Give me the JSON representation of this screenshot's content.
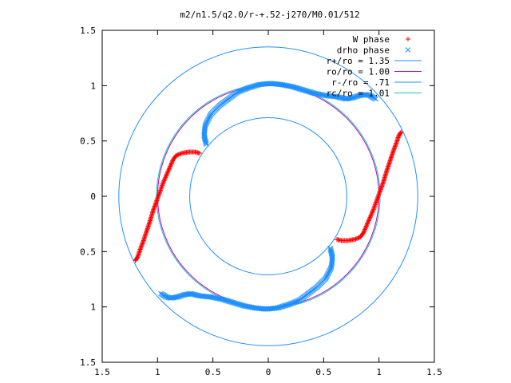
{
  "chart_data": {
    "type": "scatter",
    "title": "m2/n1.5/q2.0/r-+.52-j270/M0.01/512",
    "xlim": [
      -1.5,
      1.5
    ],
    "ylim": [
      -1.5,
      1.5
    ],
    "x_ticks": [
      -1.5,
      -1,
      -0.5,
      0,
      0.5,
      1,
      1.5
    ],
    "y_ticks": [
      -1.5,
      -1,
      -0.5,
      0,
      0.5,
      1,
      1.5
    ],
    "x_tick_labels": [
      "1.5",
      "1",
      "0.5",
      "0",
      "0.5",
      "1",
      "1.5"
    ],
    "y_tick_labels": [
      "1.5",
      "1",
      "0.5",
      "0",
      "0.5",
      "1",
      "1.5"
    ],
    "legend_position": "top-right",
    "series": [
      {
        "name": "W phase",
        "kind": "points",
        "marker": "+",
        "color": "#ff0000",
        "arms": [
          {
            "x": [
              -0.62,
              -0.66,
              -0.72,
              -0.78,
              -0.83,
              -0.86,
              -0.89,
              -0.95,
              -1.0,
              -1.04,
              -1.07,
              -1.1,
              -1.13,
              -1.16,
              -1.18,
              -1.2
            ],
            "y": [
              0.39,
              0.4,
              0.4,
              0.39,
              0.37,
              0.33,
              0.26,
              0.12,
              -0.02,
              -0.13,
              -0.23,
              -0.32,
              -0.41,
              -0.49,
              -0.55,
              -0.58
            ]
          },
          {
            "x": [
              0.62,
              0.66,
              0.72,
              0.78,
              0.83,
              0.86,
              0.89,
              0.95,
              1.0,
              1.04,
              1.07,
              1.1,
              1.13,
              1.16,
              1.18,
              1.2
            ],
            "y": [
              -0.39,
              -0.4,
              -0.4,
              -0.39,
              -0.37,
              -0.33,
              -0.26,
              -0.12,
              0.02,
              0.13,
              0.23,
              0.32,
              0.41,
              0.49,
              0.55,
              0.58
            ]
          }
        ]
      },
      {
        "name": "drho phase",
        "kind": "points",
        "marker": "x",
        "color": "#1e90ff",
        "arms": [
          {
            "x": [
              -0.56,
              -0.58,
              -0.57,
              -0.52,
              -0.44,
              -0.36,
              -0.28,
              -0.18,
              -0.08,
              0.02,
              0.12,
              0.22,
              0.32,
              0.42,
              0.52,
              0.62,
              0.7,
              0.76,
              0.82,
              0.88,
              0.92,
              0.95,
              0.97
            ],
            "y": [
              0.47,
              0.55,
              0.64,
              0.74,
              0.82,
              0.88,
              0.94,
              0.98,
              1.01,
              1.02,
              1.01,
              0.99,
              0.96,
              0.93,
              0.91,
              0.9,
              0.88,
              0.89,
              0.91,
              0.92,
              0.91,
              0.89,
              0.88
            ]
          },
          {
            "x": [
              0.56,
              0.58,
              0.57,
              0.52,
              0.44,
              0.36,
              0.28,
              0.18,
              0.08,
              -0.02,
              -0.12,
              -0.22,
              -0.32,
              -0.42,
              -0.52,
              -0.62,
              -0.7,
              -0.76,
              -0.82,
              -0.88,
              -0.92,
              -0.95,
              -0.97
            ],
            "y": [
              -0.47,
              -0.55,
              -0.64,
              -0.74,
              -0.82,
              -0.88,
              -0.94,
              -0.98,
              -1.01,
              -1.02,
              -1.01,
              -0.99,
              -0.96,
              -0.93,
              -0.91,
              -0.9,
              -0.88,
              -0.89,
              -0.91,
              -0.92,
              -0.91,
              -0.89,
              -0.88
            ]
          }
        ]
      },
      {
        "name": "r+/ro = 1.35",
        "kind": "circle",
        "radius": 1.35,
        "color": "#1e90ff"
      },
      {
        "name": "ro/ro = 1.00",
        "kind": "circle",
        "radius": 1.0,
        "color": "#c000c0"
      },
      {
        "name": "r-/ro = .71",
        "kind": "circle",
        "radius": 0.71,
        "color": "#1e90ff"
      },
      {
        "name": "rc/ro = 1.01",
        "kind": "circle",
        "radius": 1.01,
        "color": "#20c0c0"
      }
    ]
  }
}
